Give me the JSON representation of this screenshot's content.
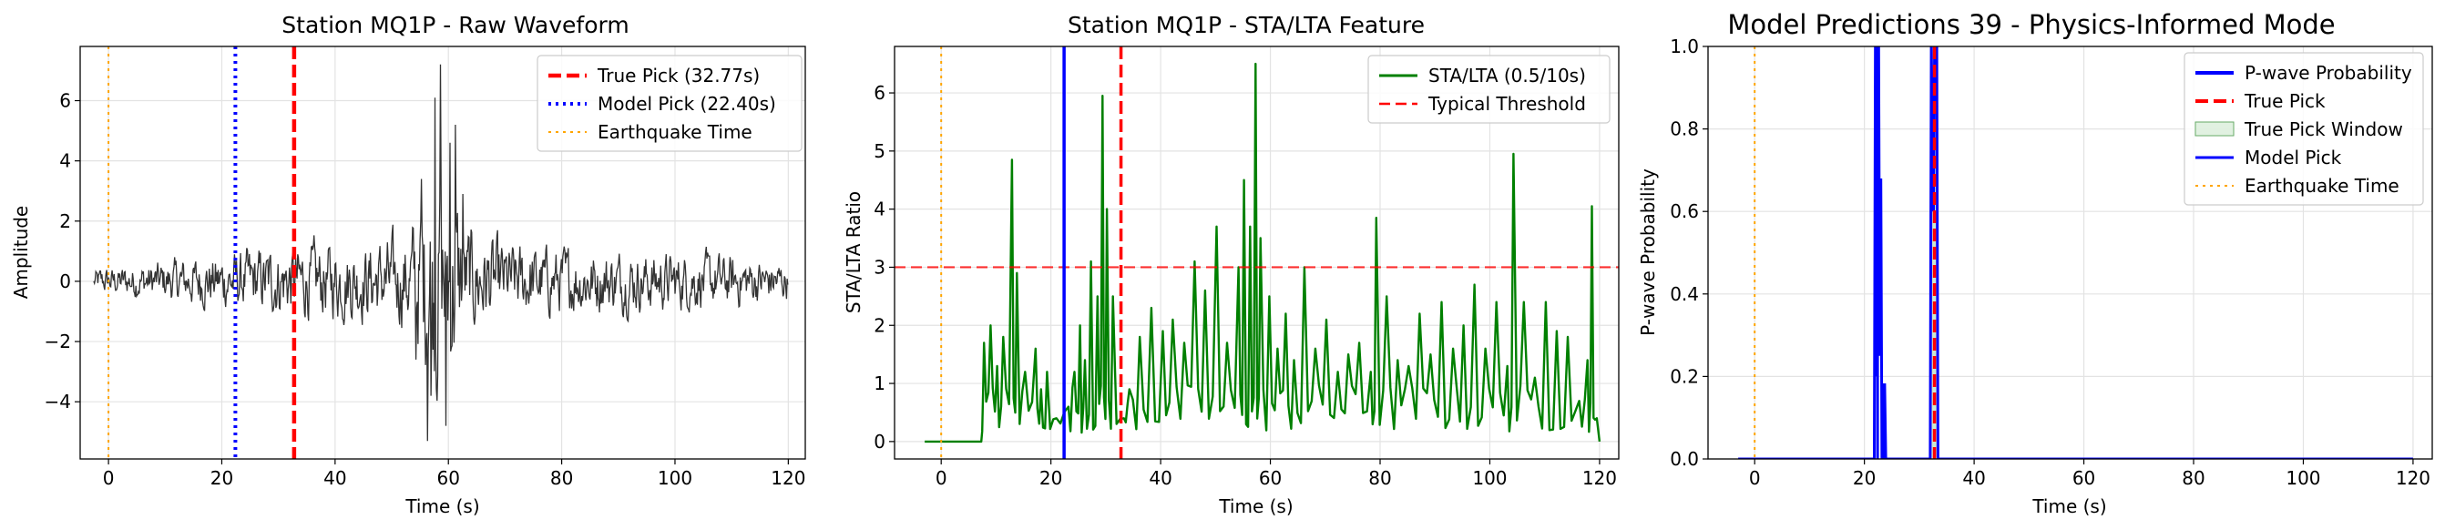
{
  "chart_data": [
    {
      "type": "line",
      "title": "Station MQ1P - Raw Waveform",
      "xlabel": "Time (s)",
      "ylabel": "Amplitude",
      "xlim": [
        -5,
        123
      ],
      "ylim": [
        -5.9,
        7.8
      ],
      "xticks": [
        0,
        20,
        40,
        60,
        80,
        100,
        120
      ],
      "yticks": [
        -4,
        -2,
        0,
        2,
        4,
        6
      ],
      "grid": true,
      "legend_placement": "upper-right",
      "colors": {
        "waveform": "#333333",
        "true_pick": "#ff0000",
        "model_pick": "#0000ff",
        "eq_time": "#ffa500"
      },
      "series": [
        {
          "kind": "waveform",
          "x_start": -2.6,
          "x_end": 120,
          "envelope": [
            [
              -2.6,
              0.35
            ],
            [
              8,
              0.55
            ],
            [
              15,
              0.7
            ],
            [
              22,
              0.85
            ],
            [
              33,
              1.05
            ],
            [
              48,
              1.15
            ],
            [
              53,
              1.4
            ],
            [
              57,
              3.2
            ],
            [
              60,
              3.3
            ],
            [
              63,
              1.6
            ],
            [
              70,
              1.1
            ],
            [
              80,
              0.95
            ],
            [
              95,
              0.85
            ],
            [
              110,
              0.75
            ],
            [
              120,
              0.55
            ]
          ],
          "spikes": [
            [
              56.3,
              -5.3
            ],
            [
              57.6,
              6.1
            ],
            [
              58.6,
              7.2
            ],
            [
              59.6,
              -4.8
            ],
            [
              55.2,
              3.4
            ],
            [
              61.2,
              5.2
            ],
            [
              56.9,
              -3.8
            ],
            [
              62.5,
              2.9
            ],
            [
              54.3,
              -2.6
            ],
            [
              60.3,
              4.6
            ]
          ]
        }
      ],
      "vlines": [
        {
          "name": "True Pick (32.77s)",
          "x": 32.77,
          "style": "dashed"
        },
        {
          "name": "Model Pick (22.40s)",
          "x": 22.4,
          "style": "dotted"
        },
        {
          "name": "Earthquake Time",
          "x": 0,
          "style": "dotted"
        }
      ],
      "legend": [
        "True Pick (32.77s)",
        "Model Pick (22.40s)",
        "Earthquake Time"
      ]
    },
    {
      "type": "line",
      "title": "Station MQ1P - STA/LTA Feature",
      "xlabel": "Time (s)",
      "ylabel": "STA/LTA Ratio",
      "xlim": [
        -8.5,
        123.5
      ],
      "ylim": [
        -0.3,
        6.8
      ],
      "xticks": [
        0,
        20,
        40,
        60,
        80,
        100,
        120
      ],
      "yticks": [
        0,
        1,
        2,
        3,
        4,
        5,
        6
      ],
      "grid": true,
      "legend_placement": "upper-right",
      "colors": {
        "stalta": "#008000",
        "threshold": "#ff0000",
        "true_pick": "#ff0000",
        "model_pick": "#0000ff",
        "eq_time": "#ffa500"
      },
      "series": [
        {
          "name": "STA/LTA (0.5/10s)",
          "flat_until": 7.3,
          "x_end": 120,
          "peaks": [
            [
              7.8,
              1.7
            ],
            [
              9.0,
              2.0
            ],
            [
              10.2,
              1.3
            ],
            [
              11.3,
              1.8
            ],
            [
              12.9,
              4.85
            ],
            [
              13.8,
              2.9
            ],
            [
              15.3,
              1.2
            ],
            [
              17.2,
              1.6
            ],
            [
              18.2,
              0.9
            ],
            [
              19.3,
              1.2
            ],
            [
              21.0,
              0.4
            ],
            [
              23.2,
              0.6
            ],
            [
              24.3,
              1.2
            ],
            [
              25.3,
              2.0
            ],
            [
              26.2,
              1.4
            ],
            [
              27.3,
              3.1
            ],
            [
              28.5,
              2.5
            ],
            [
              29.4,
              5.95
            ],
            [
              30.2,
              4.0
            ],
            [
              31.3,
              2.5
            ],
            [
              33.3,
              0.4
            ],
            [
              34.3,
              0.9
            ],
            [
              36.2,
              1.8
            ],
            [
              38.3,
              2.3
            ],
            [
              40.4,
              1.9
            ],
            [
              42.2,
              2.1
            ],
            [
              44.3,
              1.7
            ],
            [
              46.2,
              3.1
            ],
            [
              48.1,
              2.6
            ],
            [
              50.2,
              3.7
            ],
            [
              52.1,
              1.7
            ],
            [
              54.2,
              3.0
            ],
            [
              55.2,
              4.5
            ],
            [
              56.3,
              3.7
            ],
            [
              57.3,
              6.5
            ],
            [
              58.2,
              3.5
            ],
            [
              59.8,
              2.5
            ],
            [
              61.3,
              1.6
            ],
            [
              62.8,
              2.2
            ],
            [
              64.3,
              1.4
            ],
            [
              66.2,
              3.0
            ],
            [
              68.2,
              1.6
            ],
            [
              70.2,
              2.1
            ],
            [
              72.3,
              1.2
            ],
            [
              74.2,
              1.5
            ],
            [
              76.2,
              1.7
            ],
            [
              78.3,
              1.2
            ],
            [
              79.3,
              3.85
            ],
            [
              81.2,
              2.5
            ],
            [
              83.2,
              1.4
            ],
            [
              85.2,
              1.3
            ],
            [
              87.2,
              2.2
            ],
            [
              89.2,
              1.5
            ],
            [
              91.2,
              2.4
            ],
            [
              93.3,
              1.6
            ],
            [
              95.2,
              2.0
            ],
            [
              97.2,
              2.7
            ],
            [
              99.2,
              1.6
            ],
            [
              101.2,
              2.4
            ],
            [
              103.2,
              1.3
            ],
            [
              104.3,
              4.95
            ],
            [
              106.2,
              2.4
            ],
            [
              108.2,
              1.1
            ],
            [
              110.2,
              2.4
            ],
            [
              112.2,
              1.9
            ],
            [
              114.2,
              1.8
            ],
            [
              116.3,
              0.7
            ],
            [
              117.8,
              1.4
            ],
            [
              118.6,
              4.05
            ],
            [
              119.5,
              0.4
            ]
          ]
        }
      ],
      "threshold": {
        "name": "Typical Threshold",
        "y": 3
      },
      "vlines": [
        {
          "x": 22.4,
          "style": "solid",
          "color_key": "model_pick"
        },
        {
          "x": 32.77,
          "style": "dashed",
          "color_key": "true_pick"
        },
        {
          "x": 0,
          "style": "dotted",
          "color_key": "eq_time"
        }
      ],
      "legend": [
        "STA/LTA (0.5/10s)",
        "Typical Threshold"
      ]
    },
    {
      "type": "line",
      "title": "Model Predictions 39 - Physics-Informed Mode",
      "xlabel": "Time (s)",
      "ylabel": "P-wave Probability",
      "xlim": [
        -8.5,
        123.5
      ],
      "ylim": [
        0,
        1
      ],
      "xticks": [
        0,
        20,
        40,
        60,
        80,
        100,
        120
      ],
      "yticks": [
        0.0,
        0.2,
        0.4,
        0.6,
        0.8,
        1.0
      ],
      "grid": true,
      "legend_placement": "upper-right",
      "colors": {
        "prob": "#0000ff",
        "true_pick": "#ff0000",
        "window": "#c8e6c8",
        "model_pick": "#0000ff",
        "eq_time": "#ffa500"
      },
      "series": [
        {
          "name": "P-wave Probability",
          "points": [
            [
              -3,
              0
            ],
            [
              21.8,
              0
            ],
            [
              22.0,
              1
            ],
            [
              22.2,
              0.2
            ],
            [
              22.4,
              1
            ],
            [
              22.6,
              1
            ],
            [
              22.8,
              0.25
            ],
            [
              23.0,
              0.68
            ],
            [
              23.2,
              0
            ],
            [
              23.4,
              0
            ],
            [
              23.5,
              0.18
            ],
            [
              23.7,
              0.18
            ],
            [
              23.9,
              0
            ],
            [
              32.0,
              0
            ],
            [
              32.2,
              1
            ],
            [
              32.6,
              0.6
            ],
            [
              32.8,
              1
            ],
            [
              33.2,
              1
            ],
            [
              33.4,
              0
            ],
            [
              120,
              0
            ]
          ]
        }
      ],
      "true_pick_window": {
        "name": "True Pick Window",
        "x": [
          32.27,
          33.27
        ]
      },
      "vlines": [
        {
          "name": "True Pick",
          "x": 32.77,
          "style": "dashed"
        },
        {
          "name": "Model Pick",
          "x": 22.4,
          "style": "solid"
        },
        {
          "name": "Earthquake Time",
          "x": 0,
          "style": "dotted"
        }
      ],
      "legend": [
        "P-wave Probability",
        "True Pick",
        "True Pick Window",
        "Model Pick",
        "Earthquake Time"
      ]
    }
  ]
}
